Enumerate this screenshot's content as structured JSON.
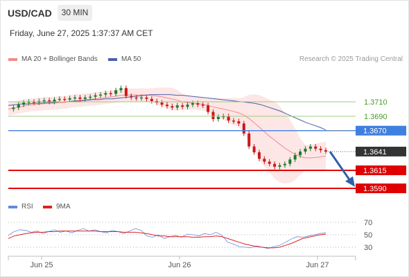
{
  "header": {
    "symbol": "USD/CAD",
    "timeframe": "30 MIN",
    "datetime": "Friday, June 27, 2025 1:37:37 AM CET"
  },
  "legend": {
    "ma20_label": "MA 20 + Bollinger Bands",
    "ma50_label": "MA 50",
    "credit": "Research © 2025 Trading Central"
  },
  "rsi_legend": {
    "rsi_label": "RSI",
    "ma_label": "9MA"
  },
  "colors": {
    "ma20": "#f08a8a",
    "ma50": "#4a5fa8",
    "bollinger_fill": "#fde6e6",
    "resistance": "#9ccc7c",
    "pivot": "#3f7fe0",
    "support": "#e00000",
    "price_tag": "#333333",
    "arrow": "#2e5fa8",
    "rsi": "#6688dd",
    "rsi_ma": "#e02020",
    "candle_up": "#1a7a2a",
    "candle_down": "#c81a1a"
  },
  "chart_data": {
    "type": "candlestick",
    "x_ticks": [
      "Jun 25",
      "Jun 26",
      "Jun 27"
    ],
    "price_axis_hidden": true,
    "levels": [
      {
        "name": "resistance 2",
        "value": "1.3710",
        "kind": "resistance"
      },
      {
        "name": "resistance 1",
        "value": "1.3690",
        "kind": "resistance"
      },
      {
        "name": "pivot",
        "value": "1.3670",
        "kind": "pivot"
      },
      {
        "name": "last price",
        "value": "1.3641",
        "kind": "last"
      },
      {
        "name": "support 1",
        "value": "1.3615",
        "kind": "support"
      },
      {
        "name": "support 2",
        "value": "1.3590",
        "kind": "support"
      }
    ],
    "price_path": [
      1.37,
      1.3702,
      1.3706,
      1.3709,
      1.371,
      1.3709,
      1.3711,
      1.3712,
      1.371,
      1.3713,
      1.3714,
      1.3713,
      1.3715,
      1.3716,
      1.3714,
      1.3716,
      1.3717,
      1.3719,
      1.372,
      1.3722,
      1.3721,
      1.3726,
      1.3729,
      1.3718,
      1.3716,
      1.3715,
      1.3716,
      1.3714,
      1.3711,
      1.3709,
      1.3706,
      1.3704,
      1.3702,
      1.3705,
      1.3703,
      1.3706,
      1.3708,
      1.3706,
      1.3705,
      1.3696,
      1.3686,
      1.3689,
      1.369,
      1.3684,
      1.3683,
      1.368,
      1.3666,
      1.3648,
      1.364,
      1.3631,
      1.3627,
      1.3624,
      1.362,
      1.3622,
      1.3624,
      1.363,
      1.3636,
      1.3641,
      1.3645,
      1.3648,
      1.3645,
      1.3643,
      1.3641
    ],
    "ma50": [
      1.3705,
      1.3706,
      1.3707,
      1.3707,
      1.3708,
      1.3708,
      1.3709,
      1.3709,
      1.371,
      1.371,
      1.3711,
      1.3711,
      1.3712,
      1.3713,
      1.3713,
      1.3714,
      1.3714,
      1.3715,
      1.3716,
      1.3717,
      1.3718,
      1.3719,
      1.372,
      1.372,
      1.372,
      1.372,
      1.3719,
      1.3719,
      1.3718,
      1.3717,
      1.3716,
      1.3715,
      1.3714,
      1.3713,
      1.3712,
      1.3711,
      1.371,
      1.3709,
      1.3708,
      1.3706,
      1.3703,
      1.37,
      1.3697,
      1.3693,
      1.3689,
      1.3685,
      1.3681,
      1.3678,
      1.3675,
      1.3671
    ],
    "rsi": {
      "ticks": [
        "70",
        "50",
        "30"
      ],
      "range": [
        0,
        100
      ],
      "rsi_path": [
        49,
        55,
        58,
        57,
        54,
        56,
        52,
        55,
        58,
        54,
        56,
        53,
        57,
        60,
        56,
        58,
        55,
        53,
        57,
        55,
        52,
        56,
        60,
        57,
        48,
        46,
        50,
        44,
        47,
        49,
        46,
        51,
        50,
        48,
        52,
        50,
        54,
        49,
        38,
        35,
        31,
        30,
        29,
        32,
        30,
        28,
        31,
        33,
        38,
        43,
        47,
        46,
        48,
        50,
        52,
        53
      ],
      "ma_path": [
        44,
        48,
        50,
        52,
        53,
        54,
        54,
        55,
        55,
        56,
        56,
        56,
        56,
        56,
        56,
        56,
        55,
        55,
        55,
        55,
        54,
        54,
        54,
        53,
        52,
        50,
        48,
        48,
        47,
        47,
        47,
        47,
        46,
        46,
        47,
        47,
        48,
        47,
        44,
        41,
        38,
        35,
        33,
        31,
        30,
        29,
        29,
        30,
        33,
        36,
        40,
        44,
        46,
        48,
        50,
        51
      ]
    }
  }
}
